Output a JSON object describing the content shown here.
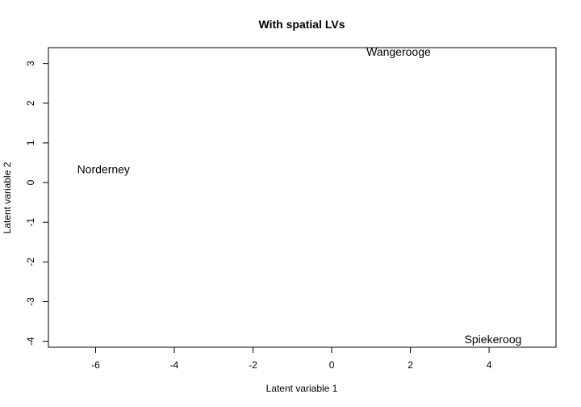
{
  "chart_data": {
    "type": "scatter",
    "title": "With spatial LVs",
    "xlabel": "Latent variable 1",
    "ylabel": "Latent variable 2",
    "xlim": [
      -7.2,
      5.7
    ],
    "ylim": [
      -4.15,
      3.4
    ],
    "x_ticks": [
      -6,
      -4,
      -2,
      0,
      2,
      4
    ],
    "y_ticks": [
      -4,
      -3,
      -2,
      -1,
      0,
      1,
      2,
      3
    ],
    "grid": false,
    "legend": "none",
    "points": [
      {
        "label": "Wangerooge",
        "x": 1.7,
        "y": 3.3
      },
      {
        "label": "Norderney",
        "x": -5.8,
        "y": 0.34
      },
      {
        "label": "Spiekeroog",
        "x": 4.1,
        "y": -3.95
      }
    ]
  }
}
